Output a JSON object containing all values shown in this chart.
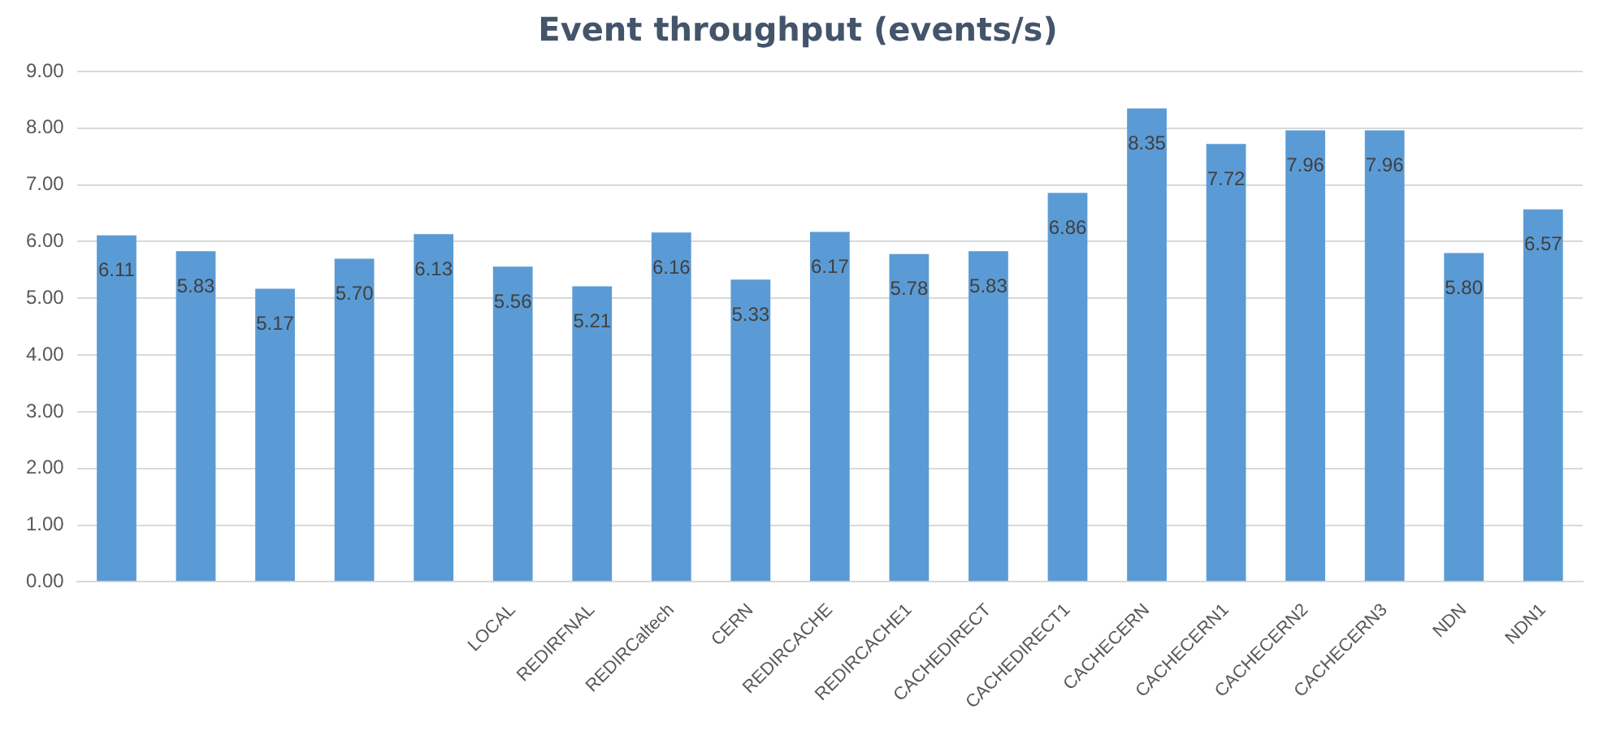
{
  "chart_data": {
    "type": "bar",
    "title": "Event throughput (events/s)",
    "categories": [
      null,
      null,
      null,
      null,
      null,
      "LOCAL",
      "REDIRFNAL",
      "REDIRCaltech",
      "CERN",
      "REDIRCACHE",
      "REDIRCACHE1",
      "CACHEDIRECT",
      "CACHEDIRECT1",
      "CACHECERN",
      "CACHECERN1",
      "CACHECERN2",
      "CACHECERN3",
      "NDN",
      "NDN1"
    ],
    "values": [
      6.11,
      5.83,
      5.17,
      5.7,
      6.13,
      5.56,
      5.21,
      6.16,
      5.33,
      6.17,
      5.78,
      5.83,
      6.86,
      8.35,
      7.72,
      7.96,
      7.96,
      5.8,
      6.57
    ],
    "value_labels": [
      "6.11",
      "5.83",
      "5.17",
      "5.70",
      "6.13",
      "5.56",
      "5.21",
      "6.16",
      "5.33",
      "6.17",
      "5.78",
      "5.83",
      "6.86",
      "8.35",
      "7.72",
      "7.96",
      "7.96",
      "5.80",
      "6.57"
    ],
    "color": "#5b9bd5",
    "ylim": [
      0,
      9
    ],
    "yticks": [
      {
        "value": 0,
        "label": "0.00"
      },
      {
        "value": 1,
        "label": "1.00"
      },
      {
        "value": 2,
        "label": "2.00"
      },
      {
        "value": 3,
        "label": "3.00"
      },
      {
        "value": 4,
        "label": "4.00"
      },
      {
        "value": 5,
        "label": "5.00"
      },
      {
        "value": 6,
        "label": "6.00"
      },
      {
        "value": 7,
        "label": "7.00"
      },
      {
        "value": 8,
        "label": "8.00"
      },
      {
        "value": 9,
        "label": "9.00"
      }
    ],
    "grid": "y",
    "legend": false
  }
}
